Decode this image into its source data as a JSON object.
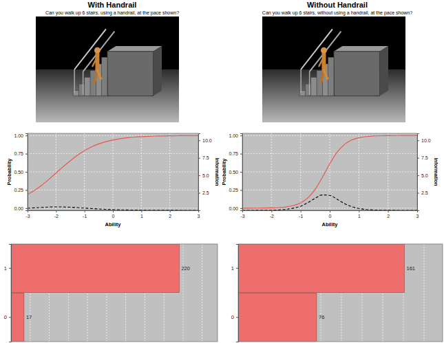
{
  "chart_data": [
    {
      "type": "line",
      "title": "With Handrail",
      "subtitle": "Can you walk up 6 stairs, using a handrail, at the pace shown?",
      "x_label": "Ability",
      "y_label": "Probability",
      "y2_label": "Information",
      "x": [
        -3,
        -2.75,
        -2.5,
        -2.25,
        -2,
        -1.75,
        -1.5,
        -1.25,
        -1,
        -0.75,
        -0.5,
        -0.25,
        0,
        0.25,
        0.5,
        0.75,
        1,
        1.25,
        1.5,
        1.75,
        2,
        2.25,
        2.5,
        2.75,
        3
      ],
      "series": [
        {
          "color": "#e8554e",
          "line_style": "solid",
          "values": [
            0.187,
            0.246,
            0.316,
            0.397,
            0.483,
            0.57,
            0.652,
            0.727,
            0.791,
            0.843,
            0.884,
            0.915,
            0.939,
            0.956,
            0.969,
            0.978,
            0.984,
            0.989,
            0.992,
            0.994,
            0.996,
            0.997,
            0.998,
            0.999,
            0.999
          ]
        },
        {
          "color": "#000000",
          "line_style": "dashed",
          "axis": "y2",
          "values": [
            0.3,
            0.36,
            0.42,
            0.47,
            0.49,
            0.48,
            0.44,
            0.39,
            0.32,
            0.26,
            0.2,
            0.15,
            0.11,
            0.08,
            0.06,
            0.04,
            0.03,
            0.02,
            0.02,
            0.01,
            0.01,
            0.01,
            0,
            0,
            0
          ]
        }
      ],
      "xlim": [
        -3,
        3
      ],
      "xticks": [
        -3,
        -2,
        -1,
        0,
        1,
        2,
        3
      ],
      "ylim": [
        -0.03,
        1.03
      ],
      "yticks": [
        {
          "value": 0,
          "label": "0.00"
        },
        0.25,
        {
          "value": 0.5,
          "label": "0.50"
        },
        0.75,
        {
          "value": 1,
          "label": "1.00"
        }
      ],
      "y2lim": [
        0,
        11
      ],
      "y2ticks": [
        2.5,
        {
          "value": 5,
          "label": "5.0"
        },
        7.5,
        {
          "value": 10,
          "label": "10.0"
        }
      ],
      "grid": true
    },
    {
      "type": "line",
      "title": "Without Handrail",
      "subtitle": "Can you walk up 6 stairs, without using a handrail, at the pace shown?",
      "x_label": "Ability",
      "y_label": "Probability",
      "y2_label": "Information",
      "x": [
        -3,
        -2.75,
        -2.5,
        -2.25,
        -2,
        -1.75,
        -1.5,
        -1.25,
        -1,
        -0.75,
        -0.5,
        -0.25,
        0,
        0.25,
        0.5,
        0.75,
        1,
        1.25,
        1.5,
        1.75,
        2,
        2.25,
        2.5,
        2.75,
        3
      ],
      "series": [
        {
          "color": "#e8554e",
          "line_style": "solid",
          "values": [
            0,
            0,
            0.001,
            0.002,
            0.004,
            0.008,
            0.017,
            0.036,
            0.072,
            0.142,
            0.259,
            0.426,
            0.611,
            0.769,
            0.875,
            0.937,
            0.969,
            0.985,
            0.993,
            0.997,
            0.998,
            0.999,
            1,
            1,
            1
          ]
        },
        {
          "color": "#000000",
          "line_style": "dashed",
          "axis": "y2",
          "values": [
            0,
            0,
            0.01,
            0.02,
            0.03,
            0.07,
            0.15,
            0.31,
            0.6,
            1.1,
            1.73,
            2.2,
            2.14,
            1.6,
            0.98,
            0.53,
            0.27,
            0.13,
            0.06,
            0.03,
            0.01,
            0.01,
            0,
            0,
            0
          ]
        }
      ],
      "xlim": [
        -3,
        3
      ],
      "xticks": [
        -3,
        -2,
        -1,
        0,
        1,
        2,
        3
      ],
      "ylim": [
        -0.03,
        1.03
      ],
      "yticks": [
        {
          "value": 0,
          "label": "0.00"
        },
        0.25,
        {
          "value": 0.5,
          "label": "0.50"
        },
        0.75,
        {
          "value": 1,
          "label": "1.00"
        }
      ],
      "y2lim": [
        0,
        11
      ],
      "y2ticks": [
        2.5,
        {
          "value": 5,
          "label": "5.0"
        },
        7.5,
        {
          "value": 10,
          "label": "10.0"
        }
      ],
      "grid": true
    },
    {
      "type": "bar",
      "orientation": "horizontal",
      "categories": [
        "0",
        "1"
      ],
      "values": [
        17,
        220
      ],
      "color": "#ee6e6e",
      "xlim": [
        0,
        270
      ],
      "xticks": [
        0,
        25,
        50,
        75,
        100,
        125,
        150,
        175,
        200,
        225,
        250
      ],
      "grid": true,
      "data_labels": true,
      "tick_labels": "y"
    },
    {
      "type": "bar",
      "orientation": "horizontal",
      "categories": [
        "0",
        "1"
      ],
      "values": [
        76,
        161
      ],
      "color": "#ee6e6e",
      "xlim": [
        0,
        198
      ],
      "xticks": [
        0,
        20,
        40,
        60,
        80,
        100,
        120,
        140,
        160,
        180
      ],
      "grid": true,
      "data_labels": true,
      "tick_labels": "y"
    }
  ]
}
